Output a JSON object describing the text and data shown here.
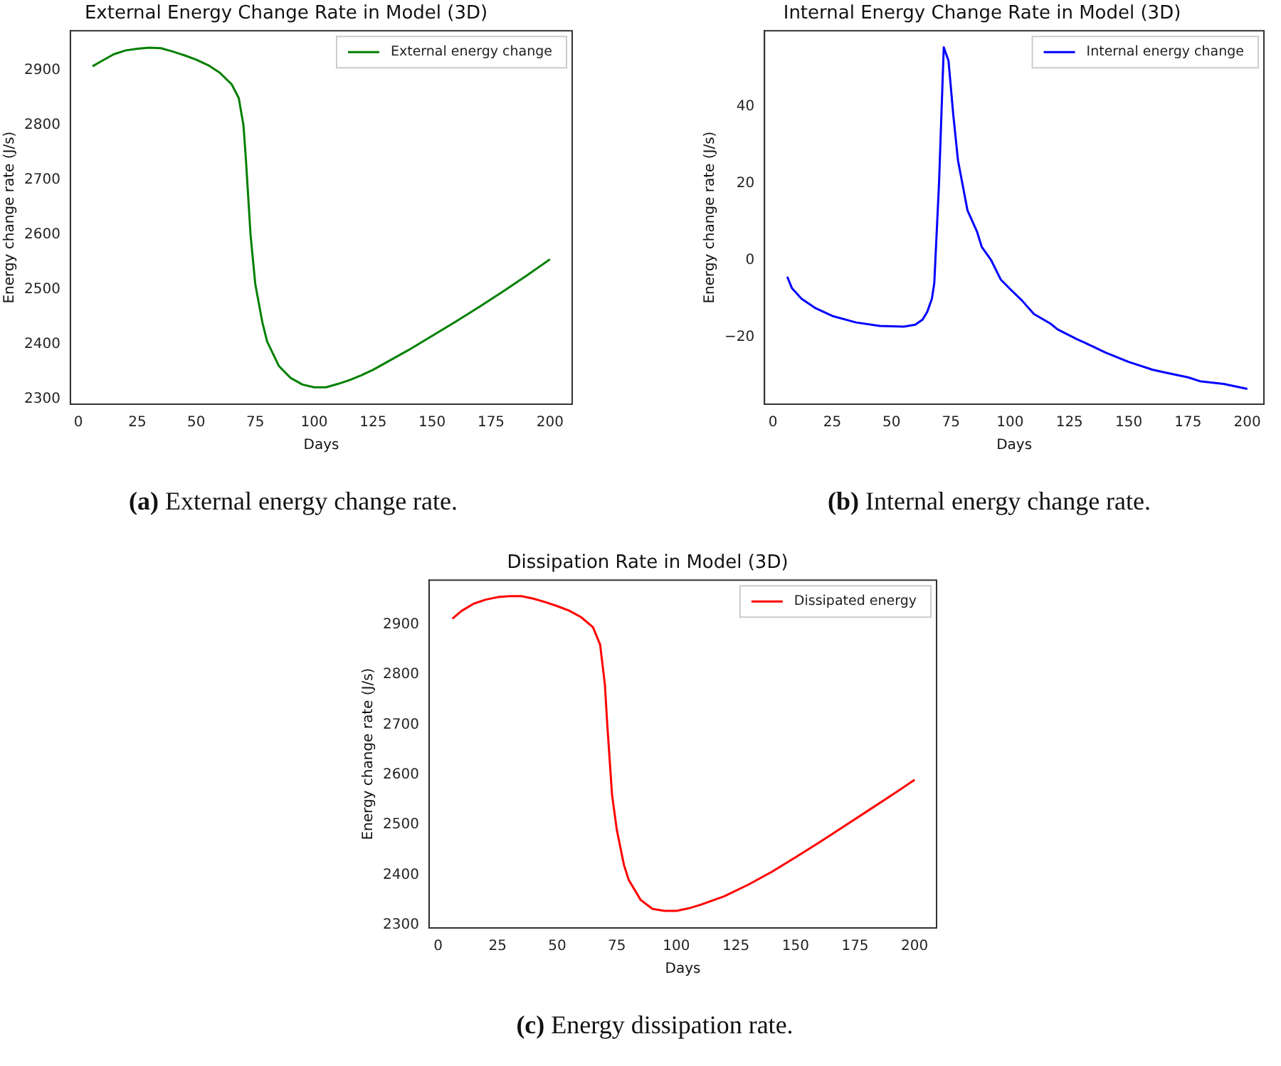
{
  "chart_data": [
    {
      "type": "line",
      "title": "External Energy Change Rate in Model (3D)",
      "xlabel": "Days",
      "ylabel": "Energy change rate (J/s)",
      "xlim": [
        -3.4,
        209.4
      ],
      "ylim": [
        2290,
        2973
      ],
      "xticks": [
        0,
        25,
        50,
        75,
        100,
        125,
        150,
        175,
        200
      ],
      "yticks": [
        2300,
        2400,
        2500,
        2600,
        2700,
        2800,
        2900
      ],
      "legend": "top right",
      "grid": false,
      "marker": "none",
      "line_style": "solid",
      "annotations": [
        "(a) External energy change rate."
      ],
      "series": [
        {
          "name": "External energy change",
          "color": "#008000",
          "x": [
            6,
            10,
            15,
            20,
            25,
            30,
            35,
            40,
            45,
            50,
            55,
            60,
            65,
            68,
            70,
            71,
            72,
            73,
            75,
            78,
            80,
            85,
            90,
            95,
            100,
            105,
            110,
            115,
            120,
            125,
            130,
            140,
            150,
            160,
            170,
            180,
            190,
            200
          ],
          "values": [
            2908,
            2918,
            2930,
            2937,
            2940,
            2942,
            2941,
            2935,
            2928,
            2920,
            2910,
            2896,
            2875,
            2850,
            2800,
            2740,
            2670,
            2600,
            2510,
            2440,
            2405,
            2360,
            2338,
            2326,
            2321,
            2321,
            2327,
            2334,
            2343,
            2353,
            2365,
            2389,
            2415,
            2441,
            2468,
            2496,
            2525,
            2555
          ]
        }
      ]
    },
    {
      "type": "line",
      "title": "Internal Energy Change Rate in Model (3D)",
      "xlabel": "Days",
      "ylabel": "Energy change rate (J/s)",
      "xlim": [
        -3.6,
        207
      ],
      "ylim": [
        -37.5,
        59.8
      ],
      "xticks": [
        0,
        25,
        50,
        75,
        100,
        125,
        150,
        175,
        200
      ],
      "yticks": [
        {
          "value": -20,
          "label": "−20"
        },
        0,
        20,
        40
      ],
      "legend": "top right",
      "grid": false,
      "marker": "none",
      "line_style": "solid",
      "annotations": [
        "(b) Internal energy change rate."
      ],
      "series": [
        {
          "name": "Internal energy change",
          "color": "#0000ff",
          "x": [
            6,
            8,
            12,
            18,
            25,
            35,
            45,
            55,
            60,
            63,
            65,
            67,
            68,
            70,
            72,
            74,
            76,
            78,
            82,
            86,
            88,
            92,
            96,
            100,
            105,
            110,
            117,
            120,
            128,
            135,
            140,
            150,
            160,
            165,
            175,
            180,
            190,
            200
          ],
          "values": [
            -4.3,
            -7.3,
            -10,
            -12.5,
            -14.5,
            -16.2,
            -17.1,
            -17.3,
            -16.8,
            -15.5,
            -13.5,
            -10,
            -6,
            20,
            55.5,
            52,
            38,
            26,
            13,
            7.5,
            3.5,
            0,
            -5,
            -7.5,
            -10.5,
            -14,
            -16.5,
            -18,
            -20.5,
            -22.5,
            -24,
            -26.5,
            -28.5,
            -29.2,
            -30.5,
            -31.5,
            -32.2,
            -33.5
          ]
        }
      ]
    },
    {
      "type": "line",
      "title": "Dissipation Rate in Model (3D)",
      "xlabel": "Days",
      "ylabel": "Energy change rate (J/s)",
      "xlim": [
        -3.8,
        209.2
      ],
      "ylim": [
        2294,
        2989
      ],
      "xticks": [
        0,
        25,
        50,
        75,
        100,
        125,
        150,
        175,
        200
      ],
      "yticks": [
        2300,
        2400,
        2500,
        2600,
        2700,
        2800,
        2900
      ],
      "legend": "top right",
      "grid": false,
      "marker": "none",
      "line_style": "solid",
      "annotations": [
        "(c) Energy dissipation rate."
      ],
      "series": [
        {
          "name": "Dissipated energy",
          "color": "#ff0000",
          "x": [
            6,
            10,
            15,
            20,
            25,
            30,
            35,
            40,
            45,
            50,
            55,
            60,
            65,
            68,
            70,
            71,
            72,
            73,
            75,
            78,
            80,
            85,
            90,
            95,
            100,
            105,
            110,
            120,
            130,
            140,
            150,
            160,
            170,
            180,
            190,
            200
          ],
          "values": [
            2912,
            2928,
            2942,
            2950,
            2955,
            2957,
            2957,
            2952,
            2945,
            2937,
            2928,
            2915,
            2895,
            2860,
            2780,
            2700,
            2630,
            2560,
            2490,
            2420,
            2390,
            2350,
            2332,
            2328,
            2328,
            2333,
            2340,
            2357,
            2380,
            2406,
            2435,
            2465,
            2496,
            2527,
            2558,
            2590
          ]
        }
      ]
    }
  ]
}
